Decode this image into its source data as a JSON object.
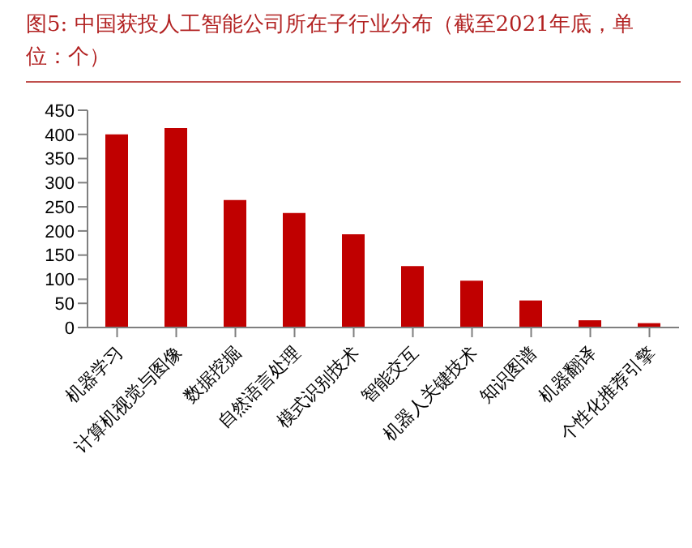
{
  "chart_data": {
    "type": "bar",
    "title": "图5:  中国获投人工智能公司所在子行业分布（截至2021年底，单位：个）",
    "categories": [
      "机器学习",
      "计算机视觉与图像",
      "数据挖掘",
      "自然语言处理",
      "模式识别技术",
      "智能交互",
      "机器人关键技术",
      "知识图谱",
      "机器翻译",
      "个性化推荐引擎"
    ],
    "values": [
      400,
      413,
      264,
      237,
      193,
      127,
      97,
      56,
      15,
      9
    ],
    "color": "#c00000",
    "ylim": [
      0,
      450
    ],
    "yticks": [
      0,
      50,
      100,
      150,
      200,
      250,
      300,
      350,
      400,
      450
    ],
    "grid": false,
    "legend": false
  }
}
